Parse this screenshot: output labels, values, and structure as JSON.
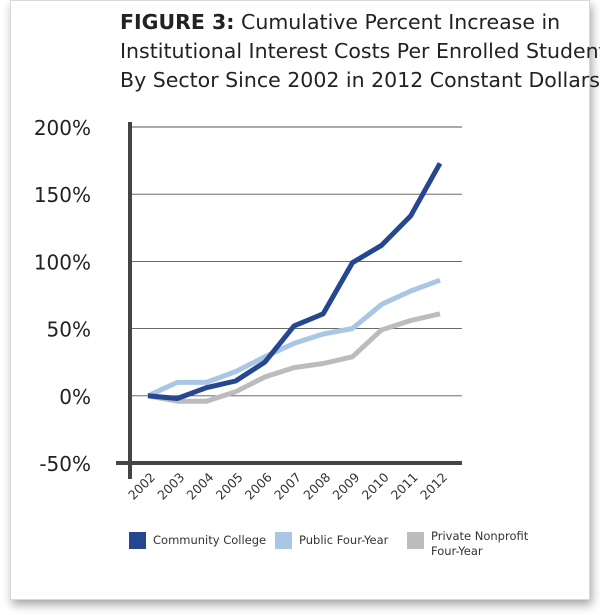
{
  "title": {
    "prefix": "FIGURE 3:",
    "line1": "Cumulative Percent Increase in",
    "line2": "Institutional Interest Costs Per Enrolled Student",
    "line3": "By Sector Since 2002 in 2012 Constant Dollars"
  },
  "chart_data": {
    "type": "line",
    "x": [
      "2002",
      "2003",
      "2004",
      "2005",
      "2006",
      "2007",
      "2008",
      "2009",
      "2010",
      "2011",
      "2012"
    ],
    "ylim": [
      -50,
      200
    ],
    "yticks": [
      -50,
      0,
      50,
      100,
      150,
      200
    ],
    "ytick_labels": [
      "-50%",
      "0%",
      "50%",
      "100%",
      "150%",
      "200%"
    ],
    "grid": true,
    "legend_position": "bottom",
    "series": [
      {
        "name": "Community College",
        "color": "#24478f",
        "values": [
          0,
          -2,
          6,
          11,
          25,
          52,
          61,
          99,
          112,
          134,
          173
        ]
      },
      {
        "name": "Public Four-Year",
        "color": "#a9c6e4",
        "values": [
          0,
          10,
          10,
          18,
          29,
          39,
          46,
          50,
          68,
          78,
          86
        ]
      },
      {
        "name": "Private Nonprofit Four-Year",
        "color": "#bcbcbc",
        "values": [
          0,
          -4,
          -4,
          3,
          14,
          21,
          24,
          29,
          49,
          56,
          61
        ]
      }
    ]
  },
  "legend": [
    {
      "label_line1": "Community College",
      "label_line2": ""
    },
    {
      "label_line1": "Public Four-Year",
      "label_line2": ""
    },
    {
      "label_line1": "Private Nonprofit",
      "label_line2": "Four-Year"
    }
  ]
}
